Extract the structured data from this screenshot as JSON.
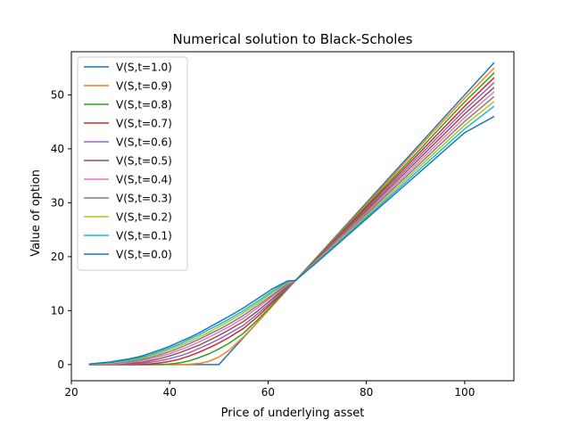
{
  "chart_data": {
    "type": "line",
    "title": "Numerical solution to Black-Scholes",
    "xlabel": "Price of underlying asset",
    "ylabel": "Value of option",
    "xlim": [
      20,
      110
    ],
    "ylim": [
      -3,
      58
    ],
    "xticks": [
      20,
      40,
      60,
      80,
      100
    ],
    "yticks": [
      0,
      10,
      20,
      30,
      40,
      50
    ],
    "grid": false,
    "legend_position": "upper-left",
    "strike": 50,
    "x": [
      23.6,
      26,
      28,
      30,
      32,
      34,
      36,
      38,
      40,
      42,
      44,
      46,
      48,
      50,
      52,
      55,
      58,
      61,
      64,
      65.6,
      70,
      75,
      80,
      85,
      90,
      95,
      100,
      106
    ],
    "series": [
      {
        "name": "V(S,t=1.0)",
        "color": "#1f77b4",
        "values": [
          0,
          0,
          0,
          0,
          0,
          0,
          0,
          0,
          0,
          0,
          0,
          0,
          0,
          0,
          2,
          5,
          8,
          11,
          14,
          15.6,
          20,
          25,
          30,
          35,
          40,
          45,
          50,
          56
        ]
      },
      {
        "name": "V(S,t=0.9)",
        "color": "#ff7f0e",
        "values": [
          0,
          0,
          0,
          0,
          0,
          0,
          0,
          0,
          0,
          0,
          0.05,
          0.2,
          0.6,
          1.4,
          2.6,
          5.1,
          8.0,
          11.0,
          14.1,
          15.6,
          19.9,
          24.8,
          29.7,
          34.6,
          39.6,
          44.5,
          49.4,
          55
        ]
      },
      {
        "name": "V(S,t=0.8)",
        "color": "#2ca02c",
        "values": [
          0,
          0,
          0,
          0,
          0,
          0,
          0,
          0.02,
          0.1,
          0.3,
          0.7,
          1.3,
          2.0,
          2.9,
          3.9,
          5.8,
          8.4,
          11.2,
          14.2,
          15.6,
          19.8,
          24.6,
          29.4,
          34.2,
          39.0,
          43.9,
          48.7,
          54.1
        ]
      },
      {
        "name": "V(S,t=0.7)",
        "color": "#d62728",
        "values": [
          0,
          0,
          0,
          0,
          0,
          0.02,
          0.1,
          0.3,
          0.6,
          1.0,
          1.6,
          2.3,
          3.1,
          4.0,
          5.0,
          6.7,
          9.0,
          11.6,
          14.3,
          15.6,
          19.7,
          24.4,
          29.1,
          33.8,
          38.5,
          43.2,
          47.9,
          53.2
        ]
      },
      {
        "name": "V(S,t=0.6)",
        "color": "#9467bd",
        "values": [
          0,
          0,
          0,
          0.02,
          0.1,
          0.2,
          0.4,
          0.7,
          1.1,
          1.6,
          2.2,
          3.0,
          3.8,
          4.7,
          5.7,
          7.3,
          9.5,
          11.9,
          14.4,
          15.6,
          19.6,
          24.2,
          28.8,
          33.4,
          38.0,
          42.6,
          47.2,
          52.3
        ]
      },
      {
        "name": "V(S,t=0.5)",
        "color": "#8c564b",
        "values": [
          0,
          0,
          0.05,
          0.1,
          0.2,
          0.4,
          0.7,
          1.1,
          1.6,
          2.2,
          2.9,
          3.6,
          4.5,
          5.4,
          6.4,
          8.0,
          10.0,
          12.3,
          14.6,
          15.6,
          19.5,
          24.0,
          28.5,
          33.0,
          37.5,
          42.0,
          46.5,
          51.4
        ]
      },
      {
        "name": "V(S,t=0.4)",
        "color": "#e377c2",
        "values": [
          0,
          0.05,
          0.1,
          0.2,
          0.4,
          0.7,
          1.0,
          1.5,
          2.0,
          2.7,
          3.4,
          4.2,
          5.1,
          6.0,
          7.0,
          8.6,
          10.6,
          12.7,
          14.8,
          15.6,
          19.4,
          23.8,
          28.2,
          32.6,
          37.0,
          41.4,
          45.8,
          50.6
        ]
      },
      {
        "name": "V(S,t=0.3)",
        "color": "#7f7f7f",
        "values": [
          0.02,
          0.1,
          0.2,
          0.4,
          0.6,
          0.9,
          1.3,
          1.8,
          2.4,
          3.1,
          3.9,
          4.7,
          5.6,
          6.5,
          7.5,
          9.1,
          11.0,
          13.0,
          15.0,
          15.6,
          19.3,
          23.6,
          27.9,
          32.2,
          36.5,
          40.8,
          45.1,
          49.7
        ]
      },
      {
        "name": "V(S,t=0.2)",
        "color": "#bcbd22",
        "values": [
          0.05,
          0.15,
          0.3,
          0.5,
          0.8,
          1.1,
          1.6,
          2.1,
          2.8,
          3.5,
          4.3,
          5.1,
          6.0,
          7.0,
          8.0,
          9.6,
          11.4,
          13.4,
          15.2,
          15.6,
          19.2,
          23.4,
          27.6,
          31.8,
          36.0,
          40.2,
          44.4,
          48.8
        ]
      },
      {
        "name": "V(S,t=0.1)",
        "color": "#17becf",
        "values": [
          0.08,
          0.2,
          0.4,
          0.6,
          0.9,
          1.3,
          1.8,
          2.4,
          3.1,
          3.8,
          4.7,
          5.5,
          6.5,
          7.4,
          8.4,
          10.0,
          11.8,
          13.7,
          15.4,
          15.6,
          19.1,
          23.2,
          27.3,
          31.4,
          35.5,
          39.6,
          43.7,
          47.9
        ]
      },
      {
        "name": "V(S,t=0.0)",
        "color": "#1f77b4",
        "values": [
          0.1,
          0.3,
          0.5,
          0.8,
          1.1,
          1.5,
          2.1,
          2.7,
          3.4,
          4.2,
          5.0,
          5.9,
          6.9,
          7.9,
          8.9,
          10.5,
          12.3,
          14.1,
          15.5,
          15.6,
          19.0,
          23.0,
          27.0,
          31.0,
          35.0,
          39.0,
          43.0,
          46.0
        ]
      }
    ]
  }
}
